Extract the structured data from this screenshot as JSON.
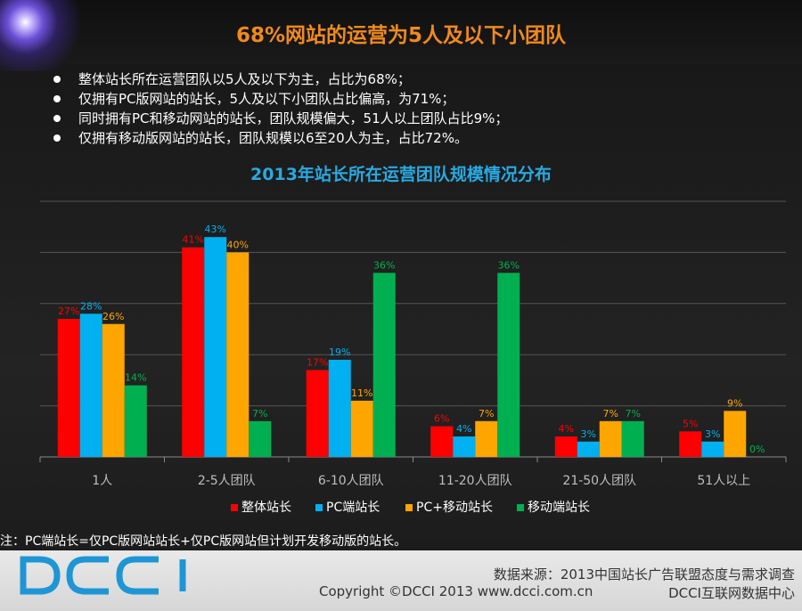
{
  "header": {
    "title": "68%网站的运营为5人及以下小团队"
  },
  "bullets": [
    "整体站长所在运营团队以5人及以下为主，占比为68%；",
    "仅拥有PC版网站的站长，5人及以下小团队占比偏高，为71%；",
    "同时拥有PC和移动网站的站长，团队规模偏大，51人以上团队占比9%；",
    "仅拥有移动版网站的站长，团队规模以6至20人为主，占比72%。"
  ],
  "chart_data": {
    "type": "bar",
    "title": "2013年站长所在运营团队规模情况分布",
    "categories": [
      "1人",
      "2-5人团队",
      "6-10人团队",
      "11-20人团队",
      "21-50人团队",
      "51人以上"
    ],
    "series": [
      {
        "name": "整体站长",
        "values": [
          27,
          41,
          17,
          6,
          4,
          5
        ],
        "labels": [
          "27%",
          "41%",
          "17%",
          "6%",
          "4%",
          "5%"
        ],
        "color": "#ff0000"
      },
      {
        "name": "PC端站长",
        "values": [
          28,
          43,
          19,
          4,
          3,
          3
        ],
        "labels": [
          "28%",
          "43%",
          "19%",
          "4%",
          "3%",
          "3%"
        ],
        "color": "#00b0f0"
      },
      {
        "name": "PC+移动站长",
        "values": [
          26,
          40,
          11,
          7,
          7,
          9
        ],
        "labels": [
          "26%",
          "40%",
          "11%",
          "7%",
          "7%",
          "9%"
        ],
        "color": "#ffa500"
      },
      {
        "name": "移动端站长",
        "values": [
          14,
          7,
          36,
          36,
          7,
          0
        ],
        "labels": [
          "14%",
          "7%",
          "36%",
          "36%",
          "7%",
          "0%"
        ],
        "color": "#00b050"
      }
    ],
    "ylim": [
      0,
      50
    ],
    "grid": true,
    "legend": "bottom"
  },
  "note": "注：PC端站长=仅PC版网站站长+仅PC版网站但计划开发移动版的站长。",
  "footer": {
    "logo_text": "DCCI",
    "logo_color": "#1e96d6",
    "source": "数据来源：2013中国站长广告联盟态度与需求调查",
    "copyright": "Copyright ©DCCI 2013 www.dcci.com.cn",
    "brand": "DCCI互联网数据中心"
  }
}
